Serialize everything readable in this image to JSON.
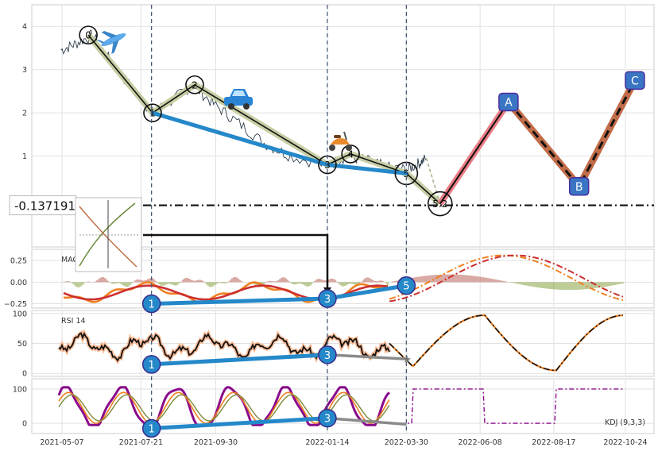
{
  "chart_data": [
    {
      "type": "line",
      "panel": "price",
      "x_dates": [
        "2021-05-07",
        "2021-07-21",
        "2021-09-30",
        "2022-01-14",
        "2022-03-30",
        "2022-06-08",
        "2022-08-17",
        "2022-10-24"
      ],
      "ylim": [
        -1.1,
        4.5
      ],
      "yticks": [
        "1",
        "2",
        "3",
        "4"
      ],
      "price_series": [
        {
          "x": "2021-05-06",
          "y": 3.45
        },
        {
          "x": "2021-05-20",
          "y": 3.6
        },
        {
          "x": "2021-06-05",
          "y": 3.8
        },
        {
          "x": "2021-06-25",
          "y": 3.1
        },
        {
          "x": "2021-07-15",
          "y": 2.5
        },
        {
          "x": "2021-08-01",
          "y": 2.0
        },
        {
          "x": "2021-08-20",
          "y": 2.3
        },
        {
          "x": "2021-09-08",
          "y": 2.65
        },
        {
          "x": "2021-09-28",
          "y": 2.2
        },
        {
          "x": "2021-10-20",
          "y": 1.8
        },
        {
          "x": "2021-11-15",
          "y": 1.3
        },
        {
          "x": "2021-12-10",
          "y": 1.0
        },
        {
          "x": "2022-01-14",
          "y": 0.78
        },
        {
          "x": "2022-02-01",
          "y": 1.0
        },
        {
          "x": "2022-02-20",
          "y": 0.9
        },
        {
          "x": "2022-03-10",
          "y": 0.75
        },
        {
          "x": "2022-03-30",
          "y": 0.68
        },
        {
          "x": "2022-04-10",
          "y": 0.82
        },
        {
          "x": "2022-04-18",
          "y": 0.95
        }
      ],
      "wave_points": [
        {
          "label": "0",
          "x": "2021-06-01",
          "y": 3.8
        },
        {
          "label": "1",
          "x": "2021-08-01",
          "y": 2.0
        },
        {
          "label": "2",
          "x": "2021-09-10",
          "y": 2.65
        },
        {
          "label": "3",
          "x": "2022-01-14",
          "y": 0.8
        },
        {
          "label": "4",
          "x": "2022-02-05",
          "y": 1.05
        },
        {
          "label": "5",
          "x": "2022-03-30",
          "y": 0.6
        },
        {
          "label": "5.2",
          "x": "2022-05-01",
          "y": -0.1
        }
      ],
      "trend_line": [
        {
          "x": "2021-08-01",
          "y": 2.0
        },
        {
          "x": "2022-01-14",
          "y": 0.8
        },
        {
          "x": "2022-03-30",
          "y": 0.6
        }
      ],
      "projection": [
        {
          "label": "",
          "x": "2022-05-01",
          "y": -0.1
        },
        {
          "label": "A",
          "x": "2022-07-05",
          "y": 2.25
        },
        {
          "label": "B",
          "x": "2022-09-10",
          "y": 0.3
        },
        {
          "label": "C",
          "x": "2022-11-02",
          "y": 2.75
        }
      ],
      "hline": {
        "label": "-0.137191",
        "y": -0.137191
      },
      "vlines": [
        "2021-07-31",
        "2022-01-14",
        "2022-03-30"
      ],
      "icons": [
        "airplane-icon",
        "car-icon",
        "scooter-icon"
      ]
    },
    {
      "type": "bar",
      "panel": "macd",
      "label": "MACD (12,26,9)",
      "ylim": [
        -0.3,
        0.38
      ],
      "yticks": [
        "0.25",
        "0.00",
        "−0.25"
      ],
      "ytick_values": [
        0.25,
        0.0,
        -0.25
      ],
      "markers": [
        {
          "label": "1",
          "x": "2021-07-31",
          "y": -0.25
        },
        {
          "label": "3",
          "x": "2022-01-14",
          "y": -0.19
        },
        {
          "label": "5",
          "x": "2022-03-30",
          "y": -0.04
        }
      ]
    },
    {
      "type": "line",
      "panel": "rsi",
      "label": "RSI 14",
      "ylim": [
        -5,
        105
      ],
      "yticks": [
        "100",
        "50",
        "0"
      ],
      "ytick_values": [
        100,
        50,
        0
      ],
      "markers": [
        {
          "label": "1",
          "x": "2021-07-31",
          "y": 15
        },
        {
          "label": "3",
          "x": "2022-01-14",
          "y": 31
        }
      ],
      "gray_line": [
        {
          "x": "2022-01-14",
          "y": 31
        },
        {
          "x": "2022-03-30",
          "y": 24
        }
      ]
    },
    {
      "type": "line",
      "panel": "kdj",
      "label": "KDJ (9,3,3)",
      "ylim": [
        -30,
        130
      ],
      "yticks": [
        "100",
        "0"
      ],
      "ytick_values": [
        100,
        0
      ],
      "markers": [
        {
          "label": "1",
          "x": "2021-07-31",
          "y": -15
        },
        {
          "label": "3",
          "x": "2022-01-14",
          "y": 15
        }
      ],
      "gray_line": [
        {
          "x": "2022-01-14",
          "y": 15
        },
        {
          "x": "2022-03-30",
          "y": -3
        }
      ]
    }
  ],
  "colors": {
    "grid": "#cccccc",
    "price": "#2f3e4f",
    "wave_fill": "#c7cfa5",
    "wave_line": "#111111",
    "trend": "#2488c9",
    "projection_pink": "#ea7d85",
    "projection_brown": "#c26d4a",
    "box_fill": "#3a75c4",
    "box_edge": "#4a2c9c",
    "macd_pos": "#b35a4b",
    "macd_neg": "#7e9c34",
    "orange": "#f08020",
    "red": "#cc2f2f",
    "purple": "#8a0a8c",
    "rsi_line": "#111111",
    "rsi_shadow": "#f7b893"
  }
}
